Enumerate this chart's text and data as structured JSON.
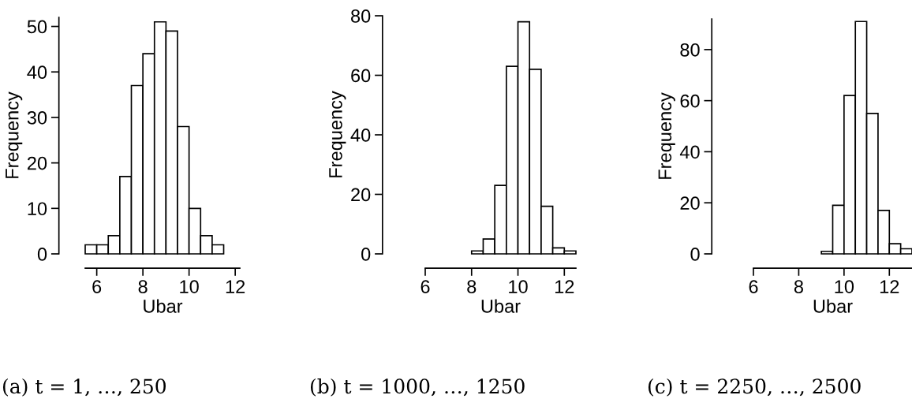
{
  "chart_data": [
    {
      "type": "histogram",
      "xlabel": "Ubar",
      "ylabel": "Frequency",
      "color": "#ffffff",
      "bins": [
        5.5,
        6,
        6.5,
        7,
        7.5,
        8,
        8.5,
        9,
        9.5,
        10,
        10.5,
        11,
        11.5
      ],
      "values": [
        2,
        2,
        4,
        17,
        37,
        44,
        51,
        49,
        28,
        10,
        4,
        2
      ],
      "xlim": [
        5.5,
        12.2
      ],
      "xticks": [
        6,
        8,
        10,
        12
      ],
      "ylim": [
        0,
        52
      ],
      "yticks": [
        0,
        10,
        20,
        30,
        40,
        50
      ],
      "annotations": [
        "(a) t = 1, …, 250"
      ]
    },
    {
      "type": "histogram",
      "xlabel": "Ubar",
      "ylabel": "Frequency",
      "color": "#ffffff",
      "bins": [
        8,
        8.5,
        9,
        9.5,
        10,
        10.5,
        11,
        11.5,
        12,
        12.5
      ],
      "values": [
        1,
        5,
        23,
        63,
        78,
        62,
        16,
        2,
        1
      ],
      "xlim": [
        6,
        12.5
      ],
      "xticks": [
        6,
        8,
        10,
        12
      ],
      "ylim": [
        0,
        80
      ],
      "yticks": [
        0,
        20,
        40,
        60,
        80
      ],
      "annotations": [
        "(b) t = 1000, …, 1250"
      ]
    },
    {
      "type": "histogram",
      "xlabel": "Ubar",
      "ylabel": "Frequency",
      "color": "#ffffff",
      "bins": [
        9,
        9.5,
        10,
        10.5,
        11,
        11.5,
        12,
        12.5,
        13
      ],
      "values": [
        1,
        19,
        62,
        91,
        55,
        17,
        4,
        2
      ],
      "xlim": [
        6,
        13
      ],
      "xticks": [
        6,
        8,
        10,
        12
      ],
      "ylim": [
        0,
        92
      ],
      "yticks": [
        0,
        20,
        40,
        60,
        80
      ],
      "annotations": [
        "(c) t = 2250, …, 2500"
      ]
    }
  ]
}
